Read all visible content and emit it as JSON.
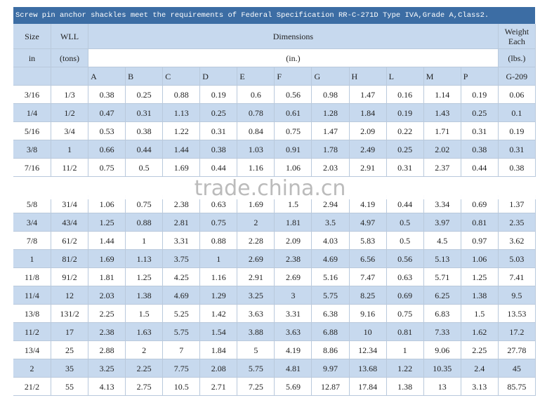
{
  "title": "Screw pin anchor shackles meet the requirements of Federal Specification RR-C-271D Type IVA,Grade A,Class2.",
  "header": {
    "size": "Size",
    "wll": "WLL",
    "dimensions": "Dimensions",
    "weight": "Weight Each",
    "size_unit": "in",
    "wll_unit": "(tons)",
    "dim_unit": "(in.)",
    "weight_unit": "(lbs.)",
    "columns": [
      "A",
      "B",
      "C",
      "D",
      "E",
      "F",
      "G",
      "H",
      "L",
      "M",
      "P"
    ],
    "weight_code": "G-209"
  },
  "rows": [
    [
      "3/16",
      "1/3",
      "0.38",
      "0.25",
      "0.88",
      "0.19",
      "0.6",
      "0.56",
      "0.98",
      "1.47",
      "0.16",
      "1.14",
      "0.19",
      "0.06"
    ],
    [
      "1/4",
      "1/2",
      "0.47",
      "0.31",
      "1.13",
      "0.25",
      "0.78",
      "0.61",
      "1.28",
      "1.84",
      "0.19",
      "1.43",
      "0.25",
      "0.1"
    ],
    [
      "5/16",
      "3/4",
      "0.53",
      "0.38",
      "1.22",
      "0.31",
      "0.84",
      "0.75",
      "1.47",
      "2.09",
      "0.22",
      "1.71",
      "0.31",
      "0.19"
    ],
    [
      "3/8",
      "1",
      "0.66",
      "0.44",
      "1.44",
      "0.38",
      "1.03",
      "0.91",
      "1.78",
      "2.49",
      "0.25",
      "2.02",
      "0.38",
      "0.31"
    ],
    [
      "7/16",
      "11/2",
      "0.75",
      "0.5",
      "1.69",
      "0.44",
      "1.16",
      "1.06",
      "2.03",
      "2.91",
      "0.31",
      "2.37",
      "0.44",
      "0.38"
    ],
    [
      "5/8",
      "31/4",
      "1.06",
      "0.75",
      "2.38",
      "0.63",
      "1.69",
      "1.5",
      "2.94",
      "4.19",
      "0.44",
      "3.34",
      "0.69",
      "1.37"
    ],
    [
      "3/4",
      "43/4",
      "1.25",
      "0.88",
      "2.81",
      "0.75",
      "2",
      "1.81",
      "3.5",
      "4.97",
      "0.5",
      "3.97",
      "0.81",
      "2.35"
    ],
    [
      "7/8",
      "61/2",
      "1.44",
      "1",
      "3.31",
      "0.88",
      "2.28",
      "2.09",
      "4.03",
      "5.83",
      "0.5",
      "4.5",
      "0.97",
      "3.62"
    ],
    [
      "1",
      "81/2",
      "1.69",
      "1.13",
      "3.75",
      "1",
      "2.69",
      "2.38",
      "4.69",
      "6.56",
      "0.56",
      "5.13",
      "1.06",
      "5.03"
    ],
    [
      "11/8",
      "91/2",
      "1.81",
      "1.25",
      "4.25",
      "1.16",
      "2.91",
      "2.69",
      "5.16",
      "7.47",
      "0.63",
      "5.71",
      "1.25",
      "7.41"
    ],
    [
      "11/4",
      "12",
      "2.03",
      "1.38",
      "4.69",
      "1.29",
      "3.25",
      "3",
      "5.75",
      "8.25",
      "0.69",
      "6.25",
      "1.38",
      "9.5"
    ],
    [
      "13/8",
      "131/2",
      "2.25",
      "1.5",
      "5.25",
      "1.42",
      "3.63",
      "3.31",
      "6.38",
      "9.16",
      "0.75",
      "6.83",
      "1.5",
      "13.53"
    ],
    [
      "11/2",
      "17",
      "2.38",
      "1.63",
      "5.75",
      "1.54",
      "3.88",
      "3.63",
      "6.88",
      "10",
      "0.81",
      "7.33",
      "1.62",
      "17.2"
    ],
    [
      "13/4",
      "25",
      "2.88",
      "2",
      "7",
      "1.84",
      "5",
      "4.19",
      "8.86",
      "12.34",
      "1",
      "9.06",
      "2.25",
      "27.78"
    ],
    [
      "2",
      "35",
      "3.25",
      "2.25",
      "7.75",
      "2.08",
      "5.75",
      "4.81",
      "9.97",
      "13.68",
      "1.22",
      "10.35",
      "2.4",
      "45"
    ],
    [
      "21/2",
      "55",
      "4.13",
      "2.75",
      "10.5",
      "2.71",
      "7.25",
      "5.69",
      "12.87",
      "17.84",
      "1.38",
      "13",
      "3.13",
      "85.75"
    ]
  ],
  "watermark": "trade.china.cn"
}
